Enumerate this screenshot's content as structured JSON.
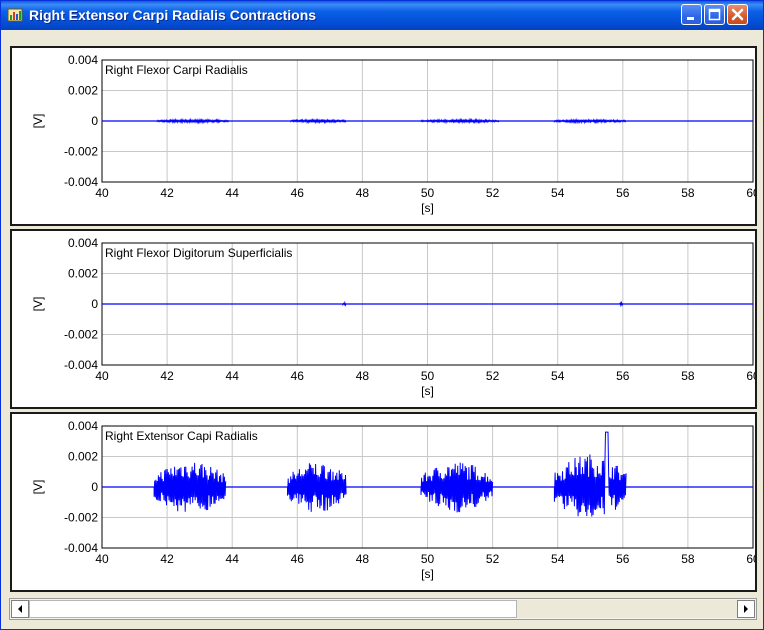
{
  "window": {
    "title": "Right Extensor Carpi Radialis Contractions",
    "app_icon": "app-chart-icon",
    "buttons": [
      "minimize-icon",
      "maximize-icon",
      "close-icon"
    ]
  },
  "colors": {
    "titlebar": "#0b61e7",
    "signal": "#0000ff",
    "grid": "#c8c8c8",
    "panel_border": "#1a1a1a"
  },
  "chart_data": [
    {
      "type": "line",
      "title": "Right Flexor Carpi Radialis",
      "xlabel": "[s]",
      "ylabel": "[V]",
      "xlim": [
        40,
        60
      ],
      "ylim": [
        -0.004,
        0.004
      ],
      "x_ticks": [
        "40",
        "42",
        "44",
        "46",
        "48",
        "50",
        "52",
        "54",
        "56",
        "58",
        "60"
      ],
      "y_ticks": [
        "0.004",
        "0.002",
        "0",
        "-0.002",
        "-0.004"
      ],
      "grid": true,
      "series": [
        {
          "values": "baseline at 0 V with very small bursts",
          "bursts": [
            {
              "start": 41.7,
              "end": 43.9,
              "amplitude": 0.0001
            },
            {
              "start": 45.8,
              "end": 47.5,
              "amplitude": 0.0001
            },
            {
              "start": 49.8,
              "end": 52.2,
              "amplitude": 0.0001
            },
            {
              "start": 53.9,
              "end": 56.1,
              "amplitude": 0.0001
            }
          ]
        }
      ]
    },
    {
      "type": "line",
      "title": "Right Flexor Digitorum Superficialis",
      "xlabel": "[s]",
      "ylabel": "[V]",
      "xlim": [
        40,
        60
      ],
      "ylim": [
        -0.004,
        0.004
      ],
      "x_ticks": [
        "40",
        "42",
        "44",
        "46",
        "48",
        "50",
        "52",
        "54",
        "56",
        "58",
        "60"
      ],
      "y_ticks": [
        "0.004",
        "0.002",
        "0",
        "-0.002",
        "-0.004"
      ],
      "grid": true,
      "series": [
        {
          "values": "flat baseline at 0 V",
          "bursts": [
            {
              "start": 47.4,
              "end": 47.5,
              "amplitude": 0.0001
            },
            {
              "start": 55.9,
              "end": 56.0,
              "amplitude": 0.0001
            }
          ]
        }
      ]
    },
    {
      "type": "line",
      "title": "Right Extensor Capi Radialis",
      "xlabel": "[s]",
      "ylabel": "[V]",
      "xlim": [
        40,
        60
      ],
      "ylim": [
        -0.004,
        0.004
      ],
      "x_ticks": [
        "40",
        "42",
        "44",
        "46",
        "48",
        "50",
        "52",
        "54",
        "56",
        "58",
        "60"
      ],
      "y_ticks": [
        "0.004",
        "0.002",
        "0",
        "-0.002",
        "-0.004"
      ],
      "grid": true,
      "series": [
        {
          "values": "EMG bursts around 0 V",
          "bursts": [
            {
              "start": 41.6,
              "end": 43.8,
              "amplitude": 0.0018
            },
            {
              "start": 45.7,
              "end": 47.5,
              "amplitude": 0.0017
            },
            {
              "start": 49.8,
              "end": 52.0,
              "amplitude": 0.0017
            },
            {
              "start": 53.9,
              "end": 56.1,
              "amplitude": 0.0022,
              "peak": 0.0036
            }
          ]
        }
      ]
    }
  ],
  "scrollbar": {
    "left_arrow": "arrow-left-icon",
    "right_arrow": "arrow-right-icon",
    "position": 0.0
  }
}
